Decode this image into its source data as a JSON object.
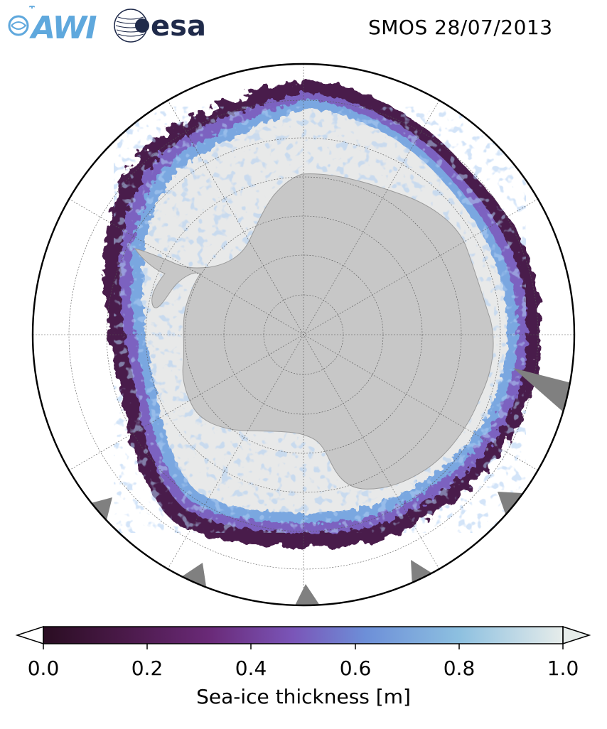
{
  "header": {
    "awi_logo_text": "AWI",
    "esa_logo_text": "esa",
    "title": "SMOS 28/07/2013"
  },
  "colorbar": {
    "label": "Sea-ice thickness [m]",
    "ticks": [
      "0.0",
      "0.2",
      "0.4",
      "0.6",
      "0.8",
      "1.0"
    ],
    "range": [
      0.0,
      1.0
    ],
    "extend": "both",
    "colors": [
      "#2a0d22",
      "#4b1a4a",
      "#6a2a78",
      "#7a55b8",
      "#6d8fd8",
      "#8dc0e0",
      "#e6ecea"
    ]
  },
  "map": {
    "projection": "south-polar-stereographic",
    "land_color": "#c8c8c8",
    "ice_shelf_color": "#e8e8e8",
    "mask_color": "#808080",
    "ocean_color": "#ffffff"
  }
}
